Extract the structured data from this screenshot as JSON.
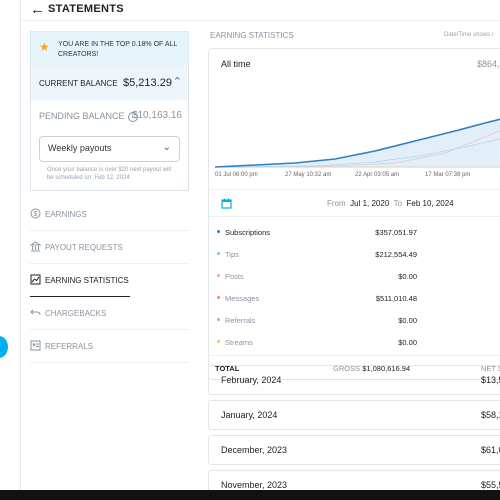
{
  "header": {
    "title": "STATEMENTS"
  },
  "sidebar": {
    "banner": "YOU ARE IN THE TOP 0.18% OF ALL CREATORS!",
    "current_balance_label": "CURRENT BALANCE",
    "current_balance_value": "$5,213.29",
    "pending_balance_label": "PENDING BALANCE",
    "pending_balance_value": "$10,163.16",
    "payout_select_value": "Weekly payouts",
    "payout_note": "Once your balance is over $20 next payout will be scheduled on: Feb 12, 2024",
    "nav": [
      {
        "label": "EARNINGS",
        "icon": "dollar-circle-icon"
      },
      {
        "label": "PAYOUT REQUESTS",
        "icon": "bank-icon"
      },
      {
        "label": "EARNING STATISTICS",
        "icon": "chart-icon"
      },
      {
        "label": "CHARGEBACKS",
        "icon": "undo-icon"
      },
      {
        "label": "REFERRALS",
        "icon": "person-card-icon"
      }
    ]
  },
  "main": {
    "section_title": "EARNING STATISTICS",
    "date_note": "Date/Time shows i",
    "period_label": "All time",
    "period_value": "$864,4",
    "chart_x_labels": [
      "01 Jul 06:00 pm",
      "27 May 10:32 am",
      "22 Apr 03:05 am",
      "17 Mar 07:38 pm",
      "1"
    ],
    "date_range": {
      "from_label": "From",
      "from": "Jul 1, 2020",
      "to_label": "To",
      "to": "Feb 10, 2024"
    },
    "rows": [
      {
        "label": "Subscriptions",
        "value": "$357,051.97",
        "edge": "$",
        "color": "#2f7fc1",
        "label_color": "#222222"
      },
      {
        "label": "Tips",
        "value": "$212,554.49",
        "edge": "$",
        "color": "#7ec8e3",
        "label_color": "#8a94a0"
      },
      {
        "label": "Posts",
        "value": "$0.00",
        "edge": "",
        "color": "#f4a3a3",
        "label_color": "#8a94a0"
      },
      {
        "label": "Messages",
        "value": "$511,010.48",
        "edge": "$",
        "color": "#f08a7e",
        "label_color": "#8a94a0"
      },
      {
        "label": "Referrals",
        "value": "$0.00",
        "edge": "",
        "color": "#b9a7d8",
        "label_color": "#8a94a0"
      },
      {
        "label": "Streams",
        "value": "$0.00",
        "edge": "",
        "color": "#f5c26b",
        "label_color": "#8a94a0"
      }
    ],
    "total": {
      "label": "TOTAL",
      "gross_label": "GROSS",
      "gross_value": "$1,080,616.94",
      "net_label": "NET",
      "net_value": "$"
    },
    "months": [
      {
        "label": "February, 2024",
        "value": "$13,5"
      },
      {
        "label": "January, 2024",
        "value": "$58,1"
      },
      {
        "label": "December, 2023",
        "value": "$61,0"
      },
      {
        "label": "November, 2023",
        "value": "$55,5"
      }
    ]
  },
  "colors": {
    "accent": "#00aff0",
    "series_primary": "#2f7fc1",
    "series_tips": "#7ec8e3",
    "series_messages": "#f08a7e"
  }
}
